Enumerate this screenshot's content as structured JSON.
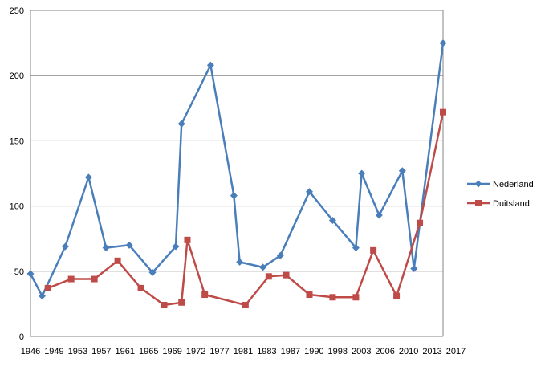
{
  "chart_data": {
    "type": "line",
    "ylim": [
      0,
      250
    ],
    "y_ticks": [
      "0",
      "50",
      "100",
      "150",
      "200",
      "250"
    ],
    "grid": "horizontal",
    "legend_position": "right",
    "x_tick_labels": [
      "1946",
      "1949",
      "1953",
      "1957",
      "1961",
      "1965",
      "1969",
      "1972",
      "1977",
      "1981",
      "1983",
      "1987",
      "1990",
      "1998",
      "2003",
      "2006",
      "2010",
      "2013",
      "2017"
    ],
    "series": [
      {
        "name": "Nederland",
        "color": "#4a7ebb",
        "marker": "diamond",
        "points": [
          [
            1946,
            48
          ],
          [
            1948,
            31
          ],
          [
            1952,
            69
          ],
          [
            1956,
            122
          ],
          [
            1959,
            68
          ],
          [
            1963,
            70
          ],
          [
            1967,
            49
          ],
          [
            1971,
            69
          ],
          [
            1972,
            163
          ],
          [
            1977,
            208
          ],
          [
            1981,
            108
          ],
          [
            1982,
            57
          ],
          [
            1986,
            53
          ],
          [
            1989,
            62
          ],
          [
            1994,
            111
          ],
          [
            1998,
            89
          ],
          [
            2002,
            68
          ],
          [
            2003,
            125
          ],
          [
            2006,
            93
          ],
          [
            2010,
            127
          ],
          [
            2012,
            52
          ],
          [
            2017,
            225
          ]
        ]
      },
      {
        "name": "Duitsland",
        "color": "#be4b48",
        "marker": "square",
        "points": [
          [
            1949,
            37
          ],
          [
            1953,
            44
          ],
          [
            1957,
            44
          ],
          [
            1961,
            58
          ],
          [
            1965,
            37
          ],
          [
            1969,
            24
          ],
          [
            1972,
            26
          ],
          [
            1973,
            74
          ],
          [
            1976,
            32
          ],
          [
            1983,
            24
          ],
          [
            1987,
            46
          ],
          [
            1990,
            47
          ],
          [
            1994,
            32
          ],
          [
            1998,
            30
          ],
          [
            2002,
            30
          ],
          [
            2005,
            66
          ],
          [
            2009,
            31
          ],
          [
            2013,
            87
          ],
          [
            2017,
            172
          ]
        ]
      }
    ]
  }
}
